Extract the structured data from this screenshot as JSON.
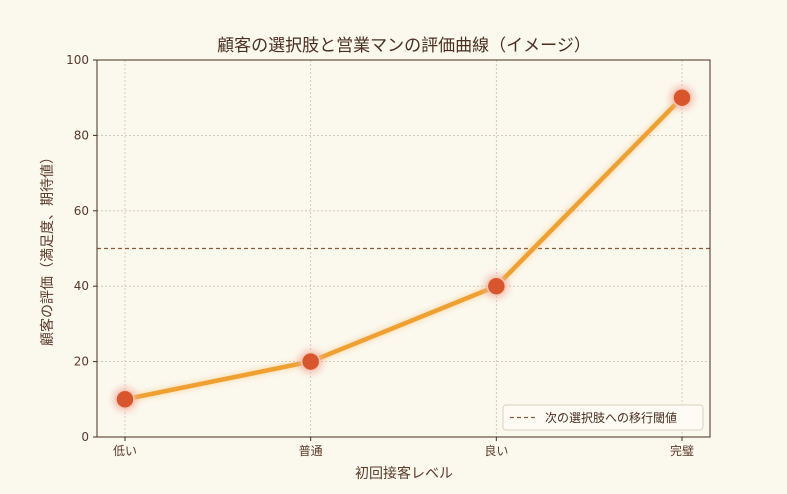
{
  "chart_data": {
    "type": "line",
    "title": "顧客の選択肢と営業マンの評価曲線（イメージ）",
    "xlabel": "初回接客レベル",
    "ylabel": "顧客の評価（満足度、期待値）",
    "categories": [
      "低い",
      "普通",
      "良い",
      "完璧"
    ],
    "series": [
      {
        "values": [
          10,
          20,
          40,
          90
        ]
      }
    ],
    "ylim": [
      0,
      100
    ],
    "yticks": [
      0,
      20,
      40,
      60,
      80,
      100
    ],
    "threshold": {
      "value": 50,
      "label": "次の選択肢への移行閾値"
    },
    "grid": true,
    "legend": "bottom-right",
    "colors": {
      "background": "#fbf8ee",
      "line": "#f0a030",
      "marker": "#d9552c",
      "marker_glow": "#f3b0a0",
      "threshold": "#8a5a3c",
      "grid": "#c8c0b0",
      "axis": "#4a2e20"
    }
  }
}
